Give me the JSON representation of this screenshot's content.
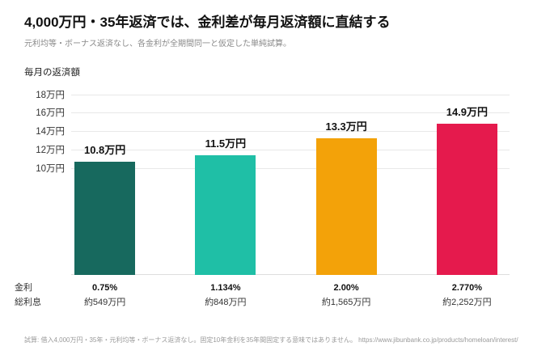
{
  "chart_data": {
    "type": "bar",
    "title": "4,000万円・35年返済では、金利差が毎月返済額に直結する",
    "subtitle": "元利均等・ボーナス返済なし、各金利が全期間同一と仮定した単純試算。",
    "ylabel": "毎月の返済額",
    "unit": "万円",
    "categories": [
      "0.75%",
      "1.134%",
      "2.00%",
      "2.770%"
    ],
    "values": [
      10.8,
      11.5,
      13.3,
      14.9
    ],
    "bar_labels": [
      "10.8万円",
      "11.5万円",
      "13.3万円",
      "14.9万円"
    ],
    "bar_colors": [
      "#17695e",
      "#1fbfa6",
      "#f3a209",
      "#e51a4d"
    ],
    "yticks": [
      10,
      12,
      14,
      16,
      18
    ],
    "ytick_labels": [
      "10万円",
      "12万円",
      "14万円",
      "16万円",
      "18万円"
    ],
    "ylim": [
      -1.5,
      18.75
    ],
    "grid": true,
    "legend": "none",
    "annotation_rows": [
      {
        "label": "金利",
        "values": [
          "0.75%",
          "1.134%",
          "2.00%",
          "2.770%"
        ],
        "bold": true
      },
      {
        "label": "総利息",
        "values": [
          "約549万円",
          "約848万円",
          "約1,565万円",
          "約2,252万円"
        ],
        "bold": false
      }
    ],
    "footnote": "試算: 借入4,000万円・35年・元利均等・ボーナス返済なし。固定10年金利を35年間固定する意味ではありません。 https://www.jibunbank.co.jp/products/homeloan/interest/"
  }
}
